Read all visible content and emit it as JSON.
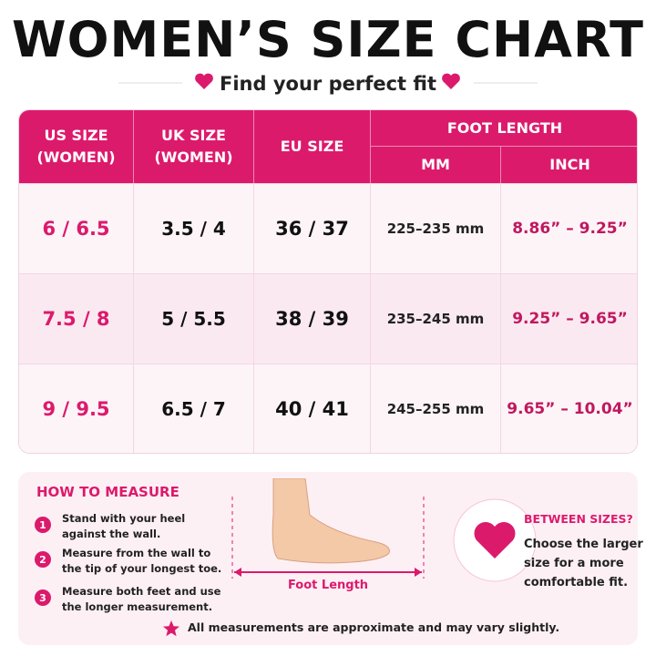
{
  "header": {
    "title": "WOMEN’S SIZE CHART",
    "subtitle": "Find your perfect fit"
  },
  "table": {
    "columns": [
      "US SIZE\n(WOMEN)",
      "UK SIZE\n(WOMEN)",
      "EU SIZE",
      "FOOT LENGTH",
      "MM",
      "INCH"
    ],
    "rows": [
      [
        "6 / 6.5",
        "3.5 / 4",
        "36 / 37",
        "225–235 mm",
        "8.86” – 9.25”"
      ],
      [
        "7.5 / 8",
        "5 / 5.5",
        "38 / 39",
        "235–245 mm",
        "9.25” – 9.65”"
      ],
      [
        "9 / 9.5",
        "6.5 / 7",
        "40 / 41",
        "245–255 mm",
        "9.65” – 10.04”"
      ]
    ]
  },
  "how_to_measure": {
    "title": "HOW TO MEASURE",
    "steps": [
      {
        "number": "1",
        "text": "Stand with your heel\nagainst the wall."
      },
      {
        "number": "2",
        "text": "Measure from the wall to\nthe tip of your longest toe."
      },
      {
        "number": "3",
        "text": "Measure both feet and use\nthe longer measurement."
      }
    ],
    "diagram_label": "Foot Length"
  },
  "between_sizes": {
    "title": "BETWEEN SIZES?",
    "text": "Choose the larger\nsize for a more\ncomfortable fit."
  },
  "footnote": "All measurements are approximate and may vary slightly."
}
